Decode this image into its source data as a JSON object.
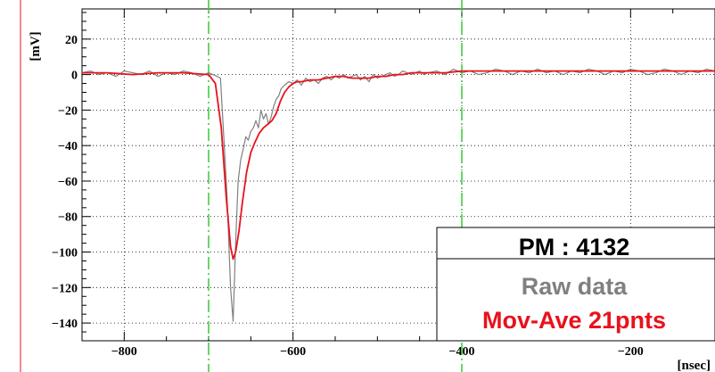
{
  "chart_data": {
    "type": "line",
    "title": "",
    "xlabel": "[nsec]",
    "ylabel": "[mV]",
    "xlim": [
      -850,
      -100
    ],
    "ylim": [
      -150,
      37
    ],
    "x_ticks": [
      -800,
      -600,
      -400,
      -200
    ],
    "x_tick_labels": [
      "−800",
      "−600",
      "−400",
      "−200"
    ],
    "y_ticks": [
      20,
      0,
      -20,
      -40,
      -60,
      -80,
      -100,
      -120,
      -140
    ],
    "y_tick_labels": [
      "20",
      "0",
      "−20",
      "−40",
      "−60",
      "−80",
      "−100",
      "−120",
      "−140"
    ],
    "grid": true,
    "vertical_markers": [
      -700,
      -400
    ],
    "legend": {
      "placement": "bottom-right",
      "entries": [
        "PM : 4132",
        "Raw data",
        "Mov-Ave 21pnts"
      ]
    },
    "colors": {
      "raw": "#808080",
      "moving_average": "#e8121c",
      "markers": "#33cc33",
      "edge_line": "#e8121c"
    },
    "series": [
      {
        "name": "Raw data",
        "x": [
          -850,
          -840,
          -830,
          -820,
          -810,
          -800,
          -790,
          -780,
          -770,
          -760,
          -750,
          -740,
          -730,
          -720,
          -710,
          -700,
          -695,
          -690,
          -686,
          -682,
          -678,
          -674,
          -671,
          -668,
          -665,
          -662,
          -659,
          -656,
          -653,
          -650,
          -647,
          -644,
          -641,
          -638,
          -635,
          -632,
          -629,
          -626,
          -623,
          -620,
          -617,
          -614,
          -610,
          -605,
          -600,
          -595,
          -590,
          -585,
          -580,
          -575,
          -570,
          -565,
          -560,
          -555,
          -550,
          -545,
          -540,
          -535,
          -530,
          -525,
          -520,
          -515,
          -510,
          -505,
          -500,
          -495,
          -490,
          -485,
          -480,
          -475,
          -470,
          -465,
          -460,
          -455,
          -450,
          -445,
          -440,
          -430,
          -420,
          -410,
          -400,
          -390,
          -380,
          -370,
          -360,
          -350,
          -340,
          -330,
          -320,
          -310,
          -300,
          -290,
          -280,
          -270,
          -260,
          -250,
          -240,
          -230,
          -220,
          -210,
          -200,
          -190,
          -180,
          -170,
          -160,
          -150,
          -140,
          -130,
          -120,
          -110,
          -100
        ],
        "y": [
          1,
          2,
          0,
          1,
          -1,
          2,
          1,
          0,
          2,
          -1,
          1,
          0,
          2,
          1,
          -1,
          1,
          0,
          -1,
          -2,
          -35,
          -70,
          -120,
          -139,
          -95,
          -60,
          -48,
          -42,
          -35,
          -37,
          -32,
          -30,
          -26,
          -30,
          -20,
          -25,
          -22,
          -28,
          -24,
          -18,
          -14,
          -12,
          -8,
          -6,
          -4,
          -5,
          -3,
          -6,
          -2,
          -4,
          -3,
          -5,
          -2,
          -1,
          -3,
          -1,
          -2,
          0,
          -2,
          -1,
          0,
          -3,
          -1,
          -4,
          0,
          -2,
          -1,
          0,
          1,
          -1,
          0,
          2,
          1,
          0,
          1,
          2,
          0,
          1,
          2,
          0,
          3,
          1,
          2,
          0,
          1,
          3,
          2,
          0,
          2,
          1,
          3,
          1,
          2,
          0,
          2,
          1,
          3,
          2,
          0,
          2,
          1,
          3,
          2,
          0,
          1,
          3,
          2,
          0,
          2,
          1,
          3,
          2
        ]
      },
      {
        "name": "Mov-Ave 21pnts",
        "x": [
          -850,
          -820,
          -790,
          -760,
          -730,
          -700,
          -692,
          -685,
          -679,
          -674,
          -671,
          -668,
          -664,
          -660,
          -655,
          -650,
          -645,
          -640,
          -635,
          -630,
          -625,
          -620,
          -615,
          -610,
          -605,
          -600,
          -595,
          -590,
          -580,
          -570,
          -560,
          -550,
          -540,
          -530,
          -520,
          -510,
          -500,
          -490,
          -480,
          -470,
          -460,
          -450,
          -440,
          -420,
          -400,
          -380,
          -360,
          -340,
          -320,
          -300,
          -280,
          -260,
          -240,
          -220,
          -200,
          -180,
          -160,
          -140,
          -120,
          -100
        ],
        "y": [
          1,
          1,
          0,
          1,
          1,
          0,
          -5,
          -30,
          -70,
          -97,
          -104,
          -100,
          -88,
          -72,
          -55,
          -44,
          -38,
          -33,
          -30,
          -28,
          -26,
          -22,
          -15,
          -10,
          -7,
          -5,
          -4,
          -4,
          -3,
          -3,
          -2,
          -1,
          -1,
          -2,
          -2,
          -2,
          -1,
          -1,
          0,
          0,
          1,
          1,
          1,
          1,
          2,
          2,
          2,
          2,
          2,
          2,
          2,
          2,
          2,
          2,
          2,
          2,
          2,
          2,
          2,
          2
        ]
      }
    ]
  }
}
